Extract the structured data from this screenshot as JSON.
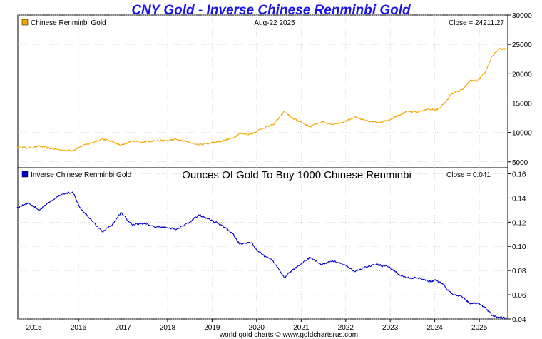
{
  "title": "CNY Gold - Inverse Chinese Renminbi Gold",
  "footer": "world gold charts © www.goldchartsrus.com",
  "colors": {
    "title": "#1a14e6",
    "gold_series": "#f0a800",
    "inverse_series": "#0000cc",
    "grid": "#c8c8c8"
  },
  "chart_data": [
    {
      "type": "line",
      "legend": "Chinese Renminbi Gold",
      "date_label": "Aug-22  2025",
      "close_label": "Close = 24211.27",
      "ylim": [
        4000,
        30000
      ],
      "yticks": [
        5000,
        10000,
        15000,
        20000,
        25000,
        30000
      ],
      "grid": true,
      "xlim": [
        "2014-08-22",
        "2025-08-22"
      ],
      "series": [
        {
          "x": [
            "2014-08",
            "2014-11",
            "2015-02",
            "2015-05",
            "2015-08",
            "2015-11",
            "2016-01",
            "2016-04",
            "2016-07",
            "2016-10",
            "2016-12",
            "2017-03",
            "2017-06",
            "2017-09",
            "2017-12",
            "2018-03",
            "2018-06",
            "2018-09",
            "2018-12",
            "2019-03",
            "2019-06",
            "2019-08",
            "2019-11",
            "2020-02",
            "2020-05",
            "2020-08",
            "2020-10",
            "2020-12",
            "2021-03",
            "2021-06",
            "2021-09",
            "2021-12",
            "2022-03",
            "2022-06",
            "2022-09",
            "2022-12",
            "2023-03",
            "2023-05",
            "2023-08",
            "2023-11",
            "2024-01",
            "2024-03",
            "2024-05",
            "2024-08",
            "2024-10",
            "2024-12",
            "2025-02",
            "2025-04",
            "2025-06",
            "2025-08"
          ],
          "values": [
            7600,
            7350,
            7700,
            7300,
            7000,
            6900,
            7600,
            8200,
            8900,
            8400,
            7800,
            8500,
            8400,
            8600,
            8600,
            8800,
            8400,
            7900,
            8200,
            8500,
            9000,
            9800,
            9700,
            10700,
            11300,
            13600,
            12500,
            11900,
            11000,
            11800,
            11400,
            11800,
            12600,
            12000,
            11700,
            12100,
            13000,
            13500,
            13500,
            14000,
            13800,
            14800,
            16500,
            17300,
            18800,
            18800,
            20100,
            23000,
            24200,
            24211
          ]
        }
      ]
    },
    {
      "type": "line",
      "legend": "Inverse Chinese Renminbi Gold",
      "subtitle": "Ounces Of Gold To Buy 1000 Chinese Renminbi",
      "close_label": "Close = 0.041",
      "ylim": [
        0.04,
        0.165
      ],
      "yticks": [
        0.04,
        0.06,
        0.08,
        0.1,
        0.12,
        0.14,
        0.16
      ],
      "grid": true,
      "xlim": [
        "2014-08-22",
        "2025-08-22"
      ],
      "xticks": [
        "2015",
        "2016",
        "2017",
        "2018",
        "2019",
        "2020",
        "2021",
        "2022",
        "2023",
        "2024",
        "2025"
      ],
      "series": [
        {
          "x": [
            "2014-08",
            "2014-11",
            "2015-02",
            "2015-05",
            "2015-08",
            "2015-11",
            "2016-01",
            "2016-04",
            "2016-07",
            "2016-10",
            "2016-12",
            "2017-03",
            "2017-06",
            "2017-09",
            "2017-12",
            "2018-03",
            "2018-06",
            "2018-09",
            "2018-12",
            "2019-03",
            "2019-06",
            "2019-08",
            "2019-11",
            "2020-02",
            "2020-05",
            "2020-08",
            "2020-10",
            "2020-12",
            "2021-03",
            "2021-06",
            "2021-09",
            "2021-12",
            "2022-03",
            "2022-06",
            "2022-09",
            "2022-12",
            "2023-03",
            "2023-05",
            "2023-08",
            "2023-11",
            "2024-01",
            "2024-03",
            "2024-05",
            "2024-08",
            "2024-10",
            "2024-12",
            "2025-02",
            "2025-04",
            "2025-06",
            "2025-08"
          ],
          "values": [
            0.132,
            0.136,
            0.13,
            0.137,
            0.143,
            0.145,
            0.132,
            0.122,
            0.112,
            0.119,
            0.128,
            0.118,
            0.119,
            0.116,
            0.116,
            0.114,
            0.119,
            0.126,
            0.122,
            0.118,
            0.111,
            0.102,
            0.103,
            0.093,
            0.088,
            0.074,
            0.08,
            0.084,
            0.091,
            0.085,
            0.088,
            0.085,
            0.079,
            0.083,
            0.085,
            0.083,
            0.077,
            0.074,
            0.074,
            0.071,
            0.072,
            0.068,
            0.061,
            0.058,
            0.053,
            0.053,
            0.05,
            0.043,
            0.041,
            0.041
          ]
        }
      ]
    }
  ]
}
